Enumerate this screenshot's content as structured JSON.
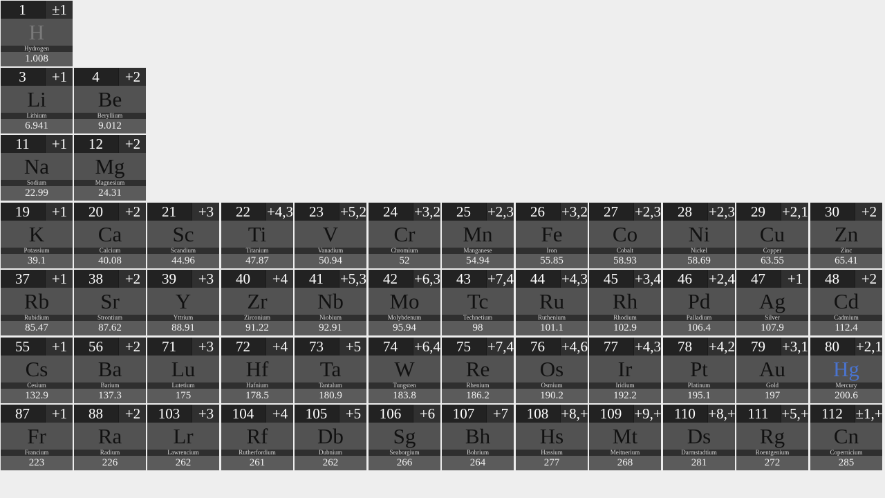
{
  "colors": {
    "background": "#eeeeee",
    "header_bg": "#222222",
    "symbol_bg": "#525252",
    "mass_bg": "#5b5b5b",
    "gas_symbol": "#7a7a7a",
    "liquid_symbol": "#4a74d0"
  },
  "elements": [
    {
      "number": "1",
      "ox": "±1",
      "symbol": "H",
      "name": "Hydrogen",
      "mass": "1.008",
      "row": 0,
      "col": 0,
      "state": "gas"
    },
    {
      "number": "3",
      "ox": "+1",
      "symbol": "Li",
      "name": "Lithium",
      "mass": "6.941",
      "row": 1,
      "col": 0
    },
    {
      "number": "4",
      "ox": "+2",
      "symbol": "Be",
      "name": "Beryllium",
      "mass": "9.012",
      "row": 1,
      "col": 1
    },
    {
      "number": "11",
      "ox": "+1",
      "symbol": "Na",
      "name": "Sodium",
      "mass": "22.99",
      "row": 2,
      "col": 0
    },
    {
      "number": "12",
      "ox": "+2",
      "symbol": "Mg",
      "name": "Magnesium",
      "mass": "24.31",
      "row": 2,
      "col": 1
    },
    {
      "number": "19",
      "ox": "+1",
      "symbol": "K",
      "name": "Potassium",
      "mass": "39.1",
      "row": 3,
      "col": 0
    },
    {
      "number": "20",
      "ox": "+2",
      "symbol": "Ca",
      "name": "Calcium",
      "mass": "40.08",
      "row": 3,
      "col": 1
    },
    {
      "number": "21",
      "ox": "+3",
      "symbol": "Sc",
      "name": "Scandium",
      "mass": "44.96",
      "row": 3,
      "col": 2
    },
    {
      "number": "22",
      "ox": "+4,3",
      "symbol": "Ti",
      "name": "Titanium",
      "mass": "47.87",
      "row": 3,
      "col": 3
    },
    {
      "number": "23",
      "ox": "+5,2",
      "symbol": "V",
      "name": "Vanadium",
      "mass": "50.94",
      "row": 3,
      "col": 4
    },
    {
      "number": "24",
      "ox": "+3,2",
      "symbol": "Cr",
      "name": "Chromium",
      "mass": "52",
      "row": 3,
      "col": 5
    },
    {
      "number": "25",
      "ox": "+2,3",
      "symbol": "Mn",
      "name": "Manganese",
      "mass": "54.94",
      "row": 3,
      "col": 6
    },
    {
      "number": "26",
      "ox": "+3,2",
      "symbol": "Fe",
      "name": "Iron",
      "mass": "55.85",
      "row": 3,
      "col": 7
    },
    {
      "number": "27",
      "ox": "+2,3",
      "symbol": "Co",
      "name": "Cobalt",
      "mass": "58.93",
      "row": 3,
      "col": 8
    },
    {
      "number": "28",
      "ox": "+2,3",
      "symbol": "Ni",
      "name": "Nickel",
      "mass": "58.69",
      "row": 3,
      "col": 9
    },
    {
      "number": "29",
      "ox": "+2,1",
      "symbol": "Cu",
      "name": "Copper",
      "mass": "63.55",
      "row": 3,
      "col": 10
    },
    {
      "number": "30",
      "ox": "+2",
      "symbol": "Zn",
      "name": "Zinc",
      "mass": "65.41",
      "row": 3,
      "col": 11
    },
    {
      "number": "37",
      "ox": "+1",
      "symbol": "Rb",
      "name": "Rubidium",
      "mass": "85.47",
      "row": 4,
      "col": 0
    },
    {
      "number": "38",
      "ox": "+2",
      "symbol": "Sr",
      "name": "Strontium",
      "mass": "87.62",
      "row": 4,
      "col": 1
    },
    {
      "number": "39",
      "ox": "+3",
      "symbol": "Y",
      "name": "Yttrium",
      "mass": "88.91",
      "row": 4,
      "col": 2
    },
    {
      "number": "40",
      "ox": "+4",
      "symbol": "Zr",
      "name": "Zirconium",
      "mass": "91.22",
      "row": 4,
      "col": 3
    },
    {
      "number": "41",
      "ox": "+5,3",
      "symbol": "Nb",
      "name": "Niobium",
      "mass": "92.91",
      "row": 4,
      "col": 4
    },
    {
      "number": "42",
      "ox": "+6,3",
      "symbol": "Mo",
      "name": "Molybdenum",
      "mass": "95.94",
      "row": 4,
      "col": 5
    },
    {
      "number": "43",
      "ox": "+7,4",
      "symbol": "Tc",
      "name": "Technetium",
      "mass": "98",
      "row": 4,
      "col": 6
    },
    {
      "number": "44",
      "ox": "+4,3",
      "symbol": "Ru",
      "name": "Ruthenium",
      "mass": "101.1",
      "row": 4,
      "col": 7
    },
    {
      "number": "45",
      "ox": "+3,4",
      "symbol": "Rh",
      "name": "Rhodium",
      "mass": "102.9",
      "row": 4,
      "col": 8
    },
    {
      "number": "46",
      "ox": "+2,4",
      "symbol": "Pd",
      "name": "Palladium",
      "mass": "106.4",
      "row": 4,
      "col": 9
    },
    {
      "number": "47",
      "ox": "+1",
      "symbol": "Ag",
      "name": "Silver",
      "mass": "107.9",
      "row": 4,
      "col": 10
    },
    {
      "number": "48",
      "ox": "+2",
      "symbol": "Cd",
      "name": "Cadmium",
      "mass": "112.4",
      "row": 4,
      "col": 11
    },
    {
      "number": "55",
      "ox": "+1",
      "symbol": "Cs",
      "name": "Cesium",
      "mass": "132.9",
      "row": 5,
      "col": 0
    },
    {
      "number": "56",
      "ox": "+2",
      "symbol": "Ba",
      "name": "Barium",
      "mass": "137.3",
      "row": 5,
      "col": 1
    },
    {
      "number": "71",
      "ox": "+3",
      "symbol": "Lu",
      "name": "Lutetium",
      "mass": "175",
      "row": 5,
      "col": 2
    },
    {
      "number": "72",
      "ox": "+4",
      "symbol": "Hf",
      "name": "Hafnium",
      "mass": "178.5",
      "row": 5,
      "col": 3
    },
    {
      "number": "73",
      "ox": "+5",
      "symbol": "Ta",
      "name": "Tantalum",
      "mass": "180.9",
      "row": 5,
      "col": 4
    },
    {
      "number": "74",
      "ox": "+6,4",
      "symbol": "W",
      "name": "Tungsten",
      "mass": "183.8",
      "row": 5,
      "col": 5
    },
    {
      "number": "75",
      "ox": "+7,4",
      "symbol": "Re",
      "name": "Rhenium",
      "mass": "186.2",
      "row": 5,
      "col": 6
    },
    {
      "number": "76",
      "ox": "+4,6",
      "symbol": "Os",
      "name": "Osmium",
      "mass": "190.2",
      "row": 5,
      "col": 7
    },
    {
      "number": "77",
      "ox": "+4,3",
      "symbol": "Ir",
      "name": "Iridium",
      "mass": "192.2",
      "row": 5,
      "col": 8
    },
    {
      "number": "78",
      "ox": "+4,2",
      "symbol": "Pt",
      "name": "Platinum",
      "mass": "195.1",
      "row": 5,
      "col": 9
    },
    {
      "number": "79",
      "ox": "+3,1",
      "symbol": "Au",
      "name": "Gold",
      "mass": "197",
      "row": 5,
      "col": 10
    },
    {
      "number": "80",
      "ox": "+2,1",
      "symbol": "Hg",
      "name": "Mercury",
      "mass": "200.6",
      "row": 5,
      "col": 11,
      "state": "liquid"
    },
    {
      "number": "87",
      "ox": "+1",
      "symbol": "Fr",
      "name": "Francium",
      "mass": "223",
      "row": 6,
      "col": 0
    },
    {
      "number": "88",
      "ox": "+2",
      "symbol": "Ra",
      "name": "Radium",
      "mass": "226",
      "row": 6,
      "col": 1
    },
    {
      "number": "103",
      "ox": "+3",
      "symbol": "Lr",
      "name": "Lawrencium",
      "mass": "262",
      "row": 6,
      "col": 2
    },
    {
      "number": "104",
      "ox": "+4",
      "symbol": "Rf",
      "name": "Rutherfordium",
      "mass": "261",
      "row": 6,
      "col": 3
    },
    {
      "number": "105",
      "ox": "+5",
      "symbol": "Db",
      "name": "Dubnium",
      "mass": "262",
      "row": 6,
      "col": 4
    },
    {
      "number": "106",
      "ox": "+6",
      "symbol": "Sg",
      "name": "Seaborgium",
      "mass": "266",
      "row": 6,
      "col": 5
    },
    {
      "number": "107",
      "ox": "+7",
      "symbol": "Bh",
      "name": "Bohrium",
      "mass": "264",
      "row": 6,
      "col": 6
    },
    {
      "number": "108",
      "ox": "+8,+",
      "symbol": "Hs",
      "name": "Hassium",
      "mass": "277",
      "row": 6,
      "col": 7
    },
    {
      "number": "109",
      "ox": "+9,+",
      "symbol": "Mt",
      "name": "Meitnerium",
      "mass": "268",
      "row": 6,
      "col": 8
    },
    {
      "number": "110",
      "ox": "+8,+",
      "symbol": "Ds",
      "name": "Darmstadtium",
      "mass": "281",
      "row": 6,
      "col": 9
    },
    {
      "number": "111",
      "ox": "+5,+",
      "symbol": "Rg",
      "name": "Roentgenium",
      "mass": "272",
      "row": 6,
      "col": 10
    },
    {
      "number": "112",
      "ox": "±1,+",
      "symbol": "Cn",
      "name": "Copernicium",
      "mass": "285",
      "row": 6,
      "col": 11
    }
  ]
}
